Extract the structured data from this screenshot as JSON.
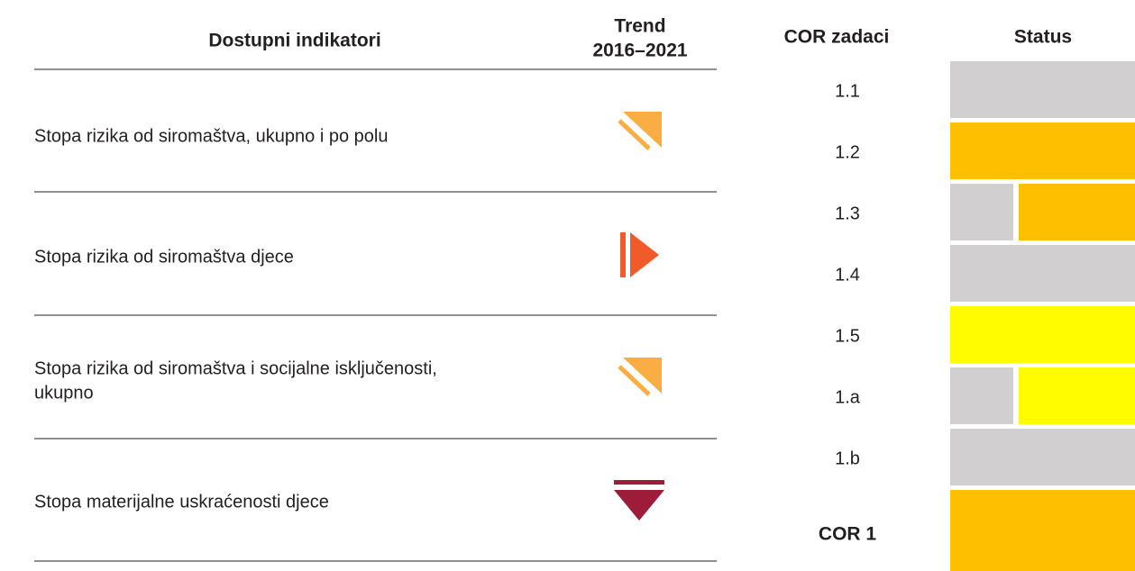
{
  "indicators": {
    "header": {
      "name": "Dostupni indikatori",
      "trend": [
        "Trend",
        "2016–2021"
      ]
    },
    "rows": [
      {
        "text": [
          "Stopa rizika od siromaštva, ukupno i po polu"
        ]
      },
      {
        "text": [
          "Stopa rizika od siromaštva djece"
        ]
      },
      {
        "text": [
          "Stopa rizika od siromaštva i socijalne isključenosti,",
          "ukupno"
        ]
      },
      {
        "text": [
          "Stopa materijalne uskraćenosti djece"
        ]
      }
    ]
  },
  "tasks": {
    "header": {
      "task": "COR zadaci",
      "status": "Status"
    },
    "rows": [
      {
        "label": "1.1",
        "status": [
          "#d1cfcf"
        ]
      },
      {
        "label": "1.2",
        "status": [
          "#fdbf00"
        ]
      },
      {
        "label": "1.3",
        "status": [
          "#d1cfcf",
          "#fdbf00"
        ]
      },
      {
        "label": "1.4",
        "status": [
          "#d1cfcf"
        ]
      },
      {
        "label": "1.5",
        "status": [
          "#fffc00"
        ]
      },
      {
        "label": "1.a",
        "status": [
          "#d1cfcf",
          "#fffc00"
        ]
      },
      {
        "label": "1.b",
        "status": [
          "#d1cfcf"
        ]
      },
      {
        "label": "COR 1",
        "status": [
          "#fdbf00"
        ]
      }
    ]
  }
}
